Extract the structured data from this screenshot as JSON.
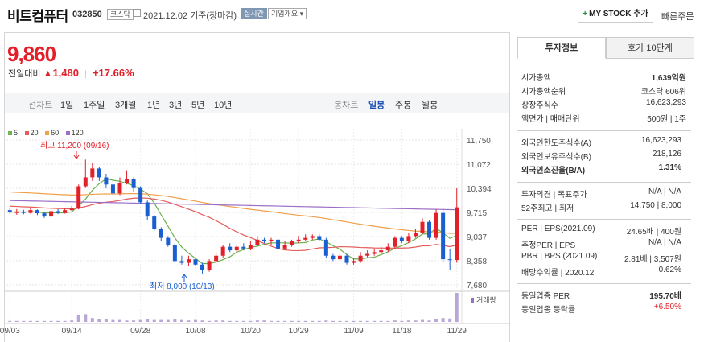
{
  "header": {
    "name": "비트컴퓨터",
    "code": "032850",
    "market": "코스닥",
    "date": "2021.12.02 기준(장마감)",
    "realtime": "실시간",
    "company": "기업개요 ▾",
    "my_stock": "MY STOCK 추가",
    "fast_order": "빠른주문"
  },
  "quote": {
    "price": "9,860",
    "label": "전일대비",
    "change": "1,480",
    "rate": "+17.66%"
  },
  "period_bar": {
    "line_label": "선차트",
    "line_items": [
      "1일",
      "1주일",
      "3개월",
      "1년",
      "3년",
      "5년",
      "10년"
    ],
    "candle_label": "봉차트",
    "candle_items": [
      "일봉",
      "주봉",
      "월봉"
    ],
    "candle_active": "일봉"
  },
  "chart_data": {
    "type": "line",
    "ma_legend": [
      {
        "name": "5",
        "color": "#6ab04c"
      },
      {
        "name": "20",
        "color": "#e55b5b"
      },
      {
        "name": "60",
        "color": "#f0a04b"
      },
      {
        "name": "120",
        "color": "#9b6fc8"
      }
    ],
    "y_ticks": [
      "11,750",
      "11,072",
      "10,394",
      "9,715",
      "9,037",
      "8,358",
      "7,680"
    ],
    "ylim": [
      7680,
      11750
    ],
    "x_ticks": [
      "09/03",
      "09/14",
      "09/28",
      "10/08",
      "10/20",
      "10/29",
      "11/09",
      "11/18",
      "11/29"
    ],
    "high_annotation": "최고 11,200 (09/16)",
    "low_annotation": "최저 8,000 (10/13)",
    "volume_label": "거래량",
    "candles": [
      [
        9780,
        9720,
        9830,
        9680
      ],
      [
        9700,
        9740,
        9810,
        9650
      ],
      [
        9740,
        9700,
        9790,
        9660
      ],
      [
        9700,
        9780,
        9830,
        9680
      ],
      [
        9780,
        9690,
        9800,
        9640
      ],
      [
        9690,
        9600,
        9720,
        9560
      ],
      [
        9600,
        9750,
        9790,
        9580
      ],
      [
        9750,
        9700,
        9810,
        9670
      ],
      [
        9700,
        9780,
        9820,
        9680
      ],
      [
        9780,
        9820,
        9900,
        9750
      ],
      [
        9820,
        10450,
        10500,
        9800
      ],
      [
        10450,
        10700,
        11200,
        10400
      ],
      [
        10700,
        10950,
        11100,
        10600
      ],
      [
        10950,
        10700,
        11000,
        10600
      ],
      [
        10700,
        10500,
        10800,
        10400
      ],
      [
        10500,
        10250,
        10600,
        10150
      ],
      [
        10250,
        10550,
        10700,
        10200
      ],
      [
        10550,
        10650,
        10900,
        10500
      ],
      [
        10650,
        10400,
        10700,
        10300
      ],
      [
        10400,
        10000,
        10450,
        9950
      ],
      [
        10000,
        9600,
        10050,
        9500
      ],
      [
        9600,
        9250,
        9650,
        9200
      ],
      [
        9250,
        9000,
        9300,
        8900
      ],
      [
        9000,
        8800,
        9050,
        8750
      ],
      [
        8800,
        8350,
        8850,
        8300
      ],
      [
        8350,
        8300,
        8500,
        8250
      ],
      [
        8300,
        8400,
        8500,
        8200
      ],
      [
        8400,
        8250,
        8450,
        8200
      ],
      [
        8250,
        8100,
        8300,
        8000
      ],
      [
        8100,
        8350,
        8400,
        8050
      ],
      [
        8350,
        8500,
        8600,
        8300
      ],
      [
        8500,
        8750,
        8800,
        8450
      ],
      [
        8750,
        8650,
        8850,
        8600
      ],
      [
        8650,
        8750,
        8800,
        8600
      ],
      [
        8750,
        8700,
        8850,
        8650
      ],
      [
        8700,
        8800,
        8900,
        8650
      ],
      [
        8800,
        8950,
        9050,
        8750
      ],
      [
        8950,
        8900,
        9000,
        8850
      ],
      [
        8900,
        8950,
        9000,
        8800
      ],
      [
        8950,
        8700,
        9000,
        8650
      ],
      [
        8700,
        8800,
        8900,
        8650
      ],
      [
        8800,
        8900,
        8950,
        8750
      ],
      [
        8900,
        8950,
        9050,
        8850
      ],
      [
        8950,
        9000,
        9100,
        8900
      ],
      [
        9000,
        9050,
        9100,
        8950
      ],
      [
        9050,
        8950,
        9100,
        8900
      ],
      [
        8950,
        8500,
        9000,
        8450
      ],
      [
        8500,
        8400,
        8550,
        8350
      ],
      [
        8400,
        8500,
        8600,
        8350
      ],
      [
        8500,
        8300,
        8550,
        8250
      ],
      [
        8300,
        8350,
        8450,
        8250
      ],
      [
        8350,
        8500,
        8600,
        8300
      ],
      [
        8500,
        8550,
        8650,
        8450
      ],
      [
        8550,
        8600,
        8700,
        8500
      ],
      [
        8600,
        8650,
        8750,
        8550
      ],
      [
        8650,
        8750,
        8850,
        8600
      ],
      [
        8750,
        9000,
        9050,
        8700
      ],
      [
        9000,
        8900,
        9050,
        8850
      ],
      [
        8900,
        9050,
        9150,
        8850
      ],
      [
        9050,
        9150,
        9250,
        9000
      ],
      [
        9150,
        9450,
        9550,
        9100
      ],
      [
        9450,
        9000,
        9500,
        8950
      ],
      [
        9000,
        9700,
        9800,
        8950
      ],
      [
        9700,
        8400,
        9850,
        8300
      ],
      [
        8400,
        8380,
        8700,
        8100
      ],
      [
        8380,
        9860,
        10394,
        8300
      ]
    ],
    "volumes": [
      2,
      2,
      2,
      2,
      2,
      2,
      2,
      2,
      2,
      3,
      14,
      16,
      8,
      6,
      5,
      4,
      4,
      3,
      3,
      4,
      5,
      4,
      4,
      4,
      5,
      4,
      3,
      4,
      3,
      2,
      3,
      3,
      2,
      2,
      2,
      2,
      3,
      3,
      2,
      2,
      2,
      2,
      2,
      2,
      2,
      2,
      3,
      2,
      2,
      2,
      2,
      2,
      2,
      2,
      2,
      2,
      3,
      2,
      3,
      3,
      4,
      3,
      6,
      8,
      7,
      60
    ]
  },
  "invest_info": {
    "tabs": [
      "투자정보",
      "호가 10단계"
    ],
    "rows1": [
      {
        "k": "시가총액",
        "v": "1,639억원"
      },
      {
        "k": "시가총액순위",
        "v": "코스닥 606위"
      },
      {
        "k": "상장주식수",
        "v": "16,623,293"
      },
      {
        "k": "액면가 | 매매단위",
        "v": "500원 | 1주"
      }
    ],
    "rows2": [
      {
        "k": "외국인한도주식수(A)",
        "v": "16,623,293"
      },
      {
        "k": "외국인보유주식수(B)",
        "v": "218,126"
      },
      {
        "k": "외국인소진율(B/A)",
        "v": "1.31%"
      }
    ],
    "rows3": [
      {
        "k": "투자의견 | 목표주가",
        "v": "N/A | N/A"
      },
      {
        "k": "52주최고 | 최저",
        "v": "14,750 | 8,000"
      }
    ],
    "rows4": [
      {
        "k": "PER | EPS(2021.09)",
        "v": "24.65배 | 400원"
      },
      {
        "k": "추정PER | EPS",
        "v": "N/A | N/A"
      },
      {
        "k": "PBR | BPS (2021.09)",
        "v": "2.81배 | 3,507원"
      },
      {
        "k": "배당수익률 | 2020.12",
        "v": "0.62%"
      }
    ],
    "rows5": [
      {
        "k": "동일업종 PER",
        "v": "195.70배"
      },
      {
        "k": "동일업종 등락률",
        "v": "+6.50%"
      }
    ]
  }
}
